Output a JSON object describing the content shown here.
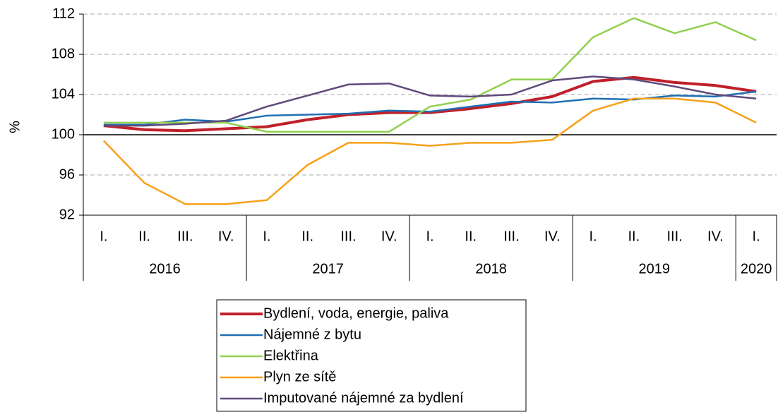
{
  "chart_data": {
    "type": "line",
    "y_label": "%",
    "categories": [
      "I.",
      "II.",
      "III.",
      "IV.",
      "I.",
      "II.",
      "III.",
      "IV.",
      "I.",
      "II.",
      "III.",
      "IV.",
      "I.",
      "II.",
      "III.",
      "IV.",
      "I."
    ],
    "x_groups": [
      {
        "label": "2016",
        "count": 4
      },
      {
        "label": "2017",
        "count": 4
      },
      {
        "label": "2018",
        "count": 4
      },
      {
        "label": "2019",
        "count": 4
      },
      {
        "label": "2020",
        "count": 1
      }
    ],
    "ylim": [
      92,
      112
    ],
    "yticks": [
      92,
      96,
      100,
      104,
      108,
      112
    ],
    "grid": true,
    "reference_line": 100,
    "legend": "bottom",
    "series": [
      {
        "name": "Bydlení, voda, energie, paliva",
        "color": "#c0202a",
        "values": [
          100.9,
          100.5,
          100.4,
          100.6,
          100.8,
          101.5,
          102.0,
          102.2,
          102.2,
          102.6,
          103.1,
          103.8,
          105.3,
          105.7,
          105.2,
          104.9,
          104.3
        ]
      },
      {
        "name": "Nájemné z bytu",
        "color": "#1f6fb4",
        "values": [
          101.0,
          101.0,
          101.5,
          101.3,
          101.9,
          102.0,
          102.1,
          102.4,
          102.3,
          102.8,
          103.3,
          103.2,
          103.6,
          103.5,
          103.9,
          103.8,
          104.3
        ]
      },
      {
        "name": "Elektřina",
        "color": "#92d050",
        "values": [
          101.2,
          101.2,
          101.2,
          101.2,
          100.3,
          100.3,
          100.3,
          100.3,
          102.8,
          103.5,
          105.5,
          105.5,
          109.7,
          111.6,
          110.1,
          111.2,
          109.4
        ]
      },
      {
        "name": "Plyn ze sítě",
        "color": "#f7a11a",
        "values": [
          99.4,
          95.2,
          93.1,
          93.1,
          93.5,
          97.0,
          99.2,
          99.2,
          98.9,
          99.2,
          99.2,
          99.5,
          102.4,
          103.6,
          103.6,
          103.2,
          101.2
        ]
      },
      {
        "name": "Imputované nájemné za bydlení",
        "color": "#604a7b",
        "values": [
          100.9,
          100.9,
          101.1,
          101.4,
          102.8,
          103.9,
          105.0,
          105.1,
          103.9,
          103.8,
          104.0,
          105.4,
          105.8,
          105.5,
          104.8,
          104.0,
          103.6
        ]
      }
    ]
  }
}
